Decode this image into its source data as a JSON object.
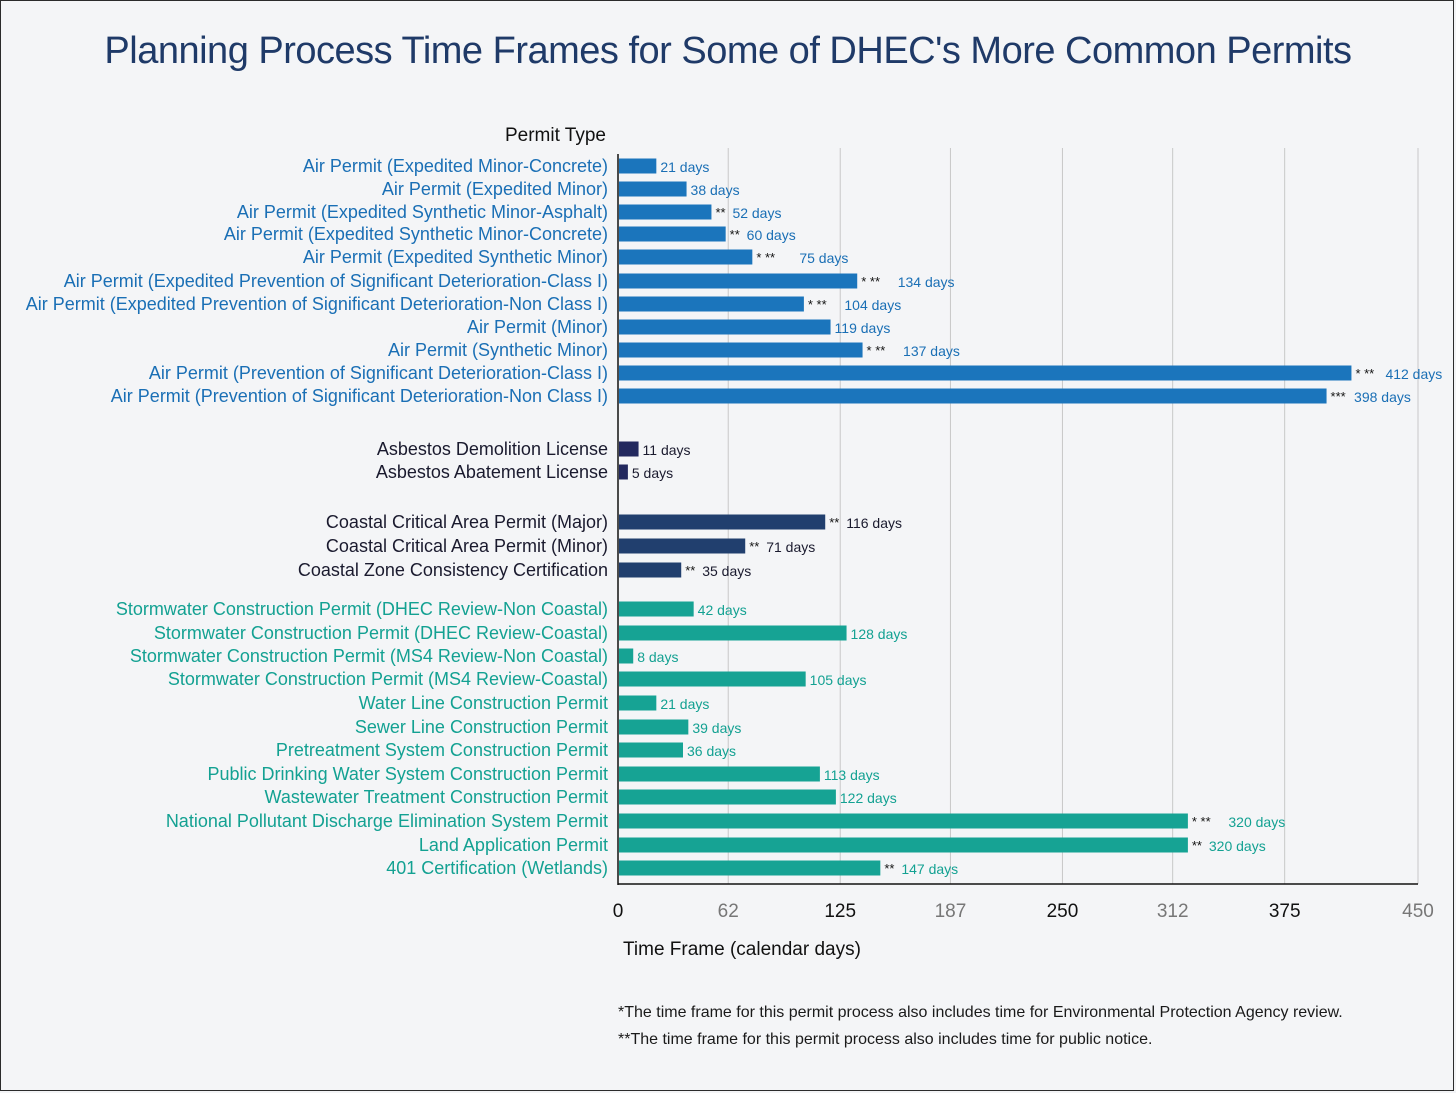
{
  "title": "Planning Process Time Frames for Some of DHEC's More Common Permits",
  "footnotes": [
    "*The time frame for this permit process also includes time for Environmental Protection Agency review.",
    "**The time frame for this permit process also includes time for public notice."
  ],
  "colors": {
    "air": "#1b75bc",
    "asbestos": "#22285e",
    "coastal": "#213f6e",
    "water": "#16a394",
    "title": "#1f3a68",
    "grid": "#c8c8c8"
  },
  "chart_data": {
    "type": "bar",
    "orientation": "horizontal",
    "title": "Planning Process Time Frames for Some of DHEC's More Common Permits",
    "ylabel": "Permit Type",
    "xlabel": "Time Frame (calendar days)",
    "xlim": [
      0,
      450
    ],
    "xticks": [
      0,
      62,
      125,
      187,
      250,
      312,
      375,
      450
    ],
    "grid": "vertical",
    "categories": [
      {
        "label": "Air Permit (Expedited Minor-Concrete)",
        "value": 21,
        "value_label": "21 days",
        "marks": "",
        "group": "air"
      },
      {
        "label": "Air Permit (Expedited Minor)",
        "value": 38,
        "value_label": "38 days",
        "marks": "",
        "group": "air"
      },
      {
        "label": "Air Permit (Expedited Synthetic Minor-Asphalt)",
        "value": 52,
        "value_label": "52 days",
        "marks": "**",
        "group": "air"
      },
      {
        "label": "Air Permit (Expedited Synthetic Minor-Concrete)",
        "value": 60,
        "value_label": "60 days",
        "marks": "**",
        "group": "air"
      },
      {
        "label": "Air Permit (Expedited Synthetic Minor)",
        "value": 75,
        "value_label": "75 days",
        "marks": "*   **",
        "group": "air"
      },
      {
        "label": "Air Permit (Expedited Prevention of Significant Deterioration-Class I)",
        "value": 134,
        "value_label": "134 days",
        "marks": "*  **",
        "group": "air"
      },
      {
        "label": "Air Permit (Expedited Prevention of Significant Deterioration-Non Class I)",
        "value": 104,
        "value_label": "104 days",
        "marks": "*  **",
        "group": "air"
      },
      {
        "label": "Air Permit (Minor)",
        "value": 119,
        "value_label": "119 days",
        "marks": "",
        "group": "air"
      },
      {
        "label": "Air Permit (Synthetic Minor)",
        "value": 137,
        "value_label": "137 days",
        "marks": "*  **",
        "group": "air"
      },
      {
        "label": "Air Permit (Prevention of Significant Deterioration-Class I)",
        "value": 412,
        "value_label": "412 days",
        "marks": "* **",
        "group": "air"
      },
      {
        "label": "Air Permit (Prevention of Significant Deterioration-Non Class I)",
        "value": 398,
        "value_label": "398 days",
        "marks": "***",
        "group": "air"
      },
      {
        "label": "Asbestos Demolition License",
        "value": 11,
        "value_label": "11 days",
        "marks": "",
        "group": "asbestos"
      },
      {
        "label": "Asbestos Abatement License",
        "value": 5,
        "value_label": "5 days",
        "marks": "",
        "group": "asbestos"
      },
      {
        "label": "Coastal Critical Area Permit (Major)",
        "value": 116,
        "value_label": "116 days",
        "marks": "**",
        "group": "coastal"
      },
      {
        "label": "Coastal Critical Area Permit (Minor)",
        "value": 71,
        "value_label": "71 days",
        "marks": "**",
        "group": "coastal"
      },
      {
        "label": "Coastal Zone Consistency Certification",
        "value": 35,
        "value_label": "35 days",
        "marks": "**",
        "group": "coastal"
      },
      {
        "label": "Stormwater Construction Permit (DHEC Review-Non Coastal)",
        "value": 42,
        "value_label": "42 days",
        "marks": "",
        "group": "water"
      },
      {
        "label": "Stormwater Construction Permit (DHEC Review-Coastal)",
        "value": 128,
        "value_label": "128 days",
        "marks": "",
        "group": "water"
      },
      {
        "label": "Stormwater Construction Permit (MS4 Review-Non Coastal)",
        "value": 8,
        "value_label": "8 days",
        "marks": "",
        "group": "water"
      },
      {
        "label": "Stormwater Construction Permit (MS4 Review-Coastal)",
        "value": 105,
        "value_label": "105 days",
        "marks": "",
        "group": "water"
      },
      {
        "label": "Water Line Construction Permit",
        "value": 21,
        "value_label": "21 days",
        "marks": "",
        "group": "water"
      },
      {
        "label": "Sewer Line Construction Permit",
        "value": 39,
        "value_label": "39 days",
        "marks": "",
        "group": "water"
      },
      {
        "label": "Pretreatment System Construction Permit",
        "value": 36,
        "value_label": "36 days",
        "marks": "",
        "group": "water"
      },
      {
        "label": "Public Drinking Water System Construction Permit",
        "value": 113,
        "value_label": "113 days",
        "marks": "",
        "group": "water"
      },
      {
        "label": "Wastewater Treatment Construction Permit",
        "value": 122,
        "value_label": "122 days",
        "marks": "",
        "group": "water"
      },
      {
        "label": "National Pollutant Discharge Elimination System Permit",
        "value": 320,
        "value_label": "320 days",
        "marks": "*  **",
        "group": "water"
      },
      {
        "label": "Land Application Permit",
        "value": 320,
        "value_label": "320 days",
        "marks": "**",
        "group": "water"
      },
      {
        "label": "401 Certification (Wetlands)",
        "value": 147,
        "value_label": "147 days",
        "marks": "**",
        "group": "water"
      }
    ]
  }
}
